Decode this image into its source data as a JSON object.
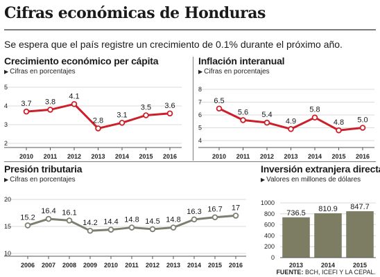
{
  "header": {
    "title": "Cifras económicas de Honduras",
    "subtitle": "Se espera que el país registre un crecimiento de 0.1% durante el próximo año."
  },
  "source": {
    "label": "FUENTE:",
    "text": "BCH, ICEFI Y LA CEPAL."
  },
  "colors": {
    "red_line": "#cc1f2a",
    "gray_line": "#7d7d70",
    "bar_fill": "#7d7d63",
    "grid": "#cfcfcf"
  },
  "chart_data": [
    {
      "id": "crecimiento",
      "type": "line",
      "title": "Crecimiento económico  per cápita",
      "subtitle": "Cifras en porcentajes",
      "categories": [
        "2010",
        "2011",
        "2012",
        "2013",
        "2014",
        "2015",
        "2016"
      ],
      "values": [
        3.7,
        3.8,
        4.1,
        2.8,
        3.1,
        3.5,
        3.6
      ],
      "labels": [
        "3.7",
        "3.8",
        "4.1",
        "2.8",
        "3.1",
        "3.5",
        "3.6"
      ],
      "y_ticks": [
        2,
        3,
        4,
        5
      ],
      "ylim": [
        2,
        5
      ],
      "grid": true,
      "color": "#cc1f2a"
    },
    {
      "id": "inflacion",
      "type": "line",
      "title": "Inflación interanual",
      "subtitle": "Cifras en porcentajes",
      "categories": [
        "2010",
        "2011",
        "2012",
        "2013",
        "2014",
        "2015",
        "2016"
      ],
      "values": [
        6.5,
        5.6,
        5.4,
        4.9,
        5.8,
        4.8,
        5.0
      ],
      "labels": [
        "6.5",
        "5.6",
        "5.4",
        "4.9",
        "5.8",
        "4.8",
        "5.0"
      ],
      "y_ticks": [
        4,
        5,
        6,
        7,
        8
      ],
      "ylim": [
        4,
        8
      ],
      "grid": true,
      "color": "#cc1f2a"
    },
    {
      "id": "presion",
      "type": "line",
      "title": "Presión tributaria",
      "subtitle": "Cifras en porcentajes",
      "categories": [
        "2006",
        "2007",
        "2008",
        "2009",
        "2010",
        "2011",
        "2012",
        "2013",
        "2014",
        "2015",
        "2016"
      ],
      "values": [
        15.2,
        16.4,
        16.1,
        14.2,
        14.4,
        14.8,
        14.5,
        14.8,
        16.3,
        16.7,
        17
      ],
      "labels": [
        "15.2",
        "16.4",
        "16.1",
        "14.2",
        "14.4",
        "14.8",
        "14.5",
        "14.8",
        "16.3",
        "16.7",
        "17"
      ],
      "y_ticks": [
        10,
        15,
        20
      ],
      "ylim": [
        10,
        20
      ],
      "grid": true,
      "color": "#7d7d70"
    },
    {
      "id": "inversion",
      "type": "bar",
      "title": "Inversión extranjera directa",
      "subtitle": "Valores en millones de dólares",
      "categories": [
        "2013",
        "2014",
        "2015"
      ],
      "values": [
        736.5,
        810.9,
        847.7
      ],
      "labels": [
        "736.5",
        "810.9",
        "847.7"
      ],
      "y_ticks": [
        0,
        200,
        400,
        600,
        800,
        1000
      ],
      "ylim": [
        0,
        1000
      ],
      "grid": true,
      "color": "#7d7d63"
    }
  ]
}
